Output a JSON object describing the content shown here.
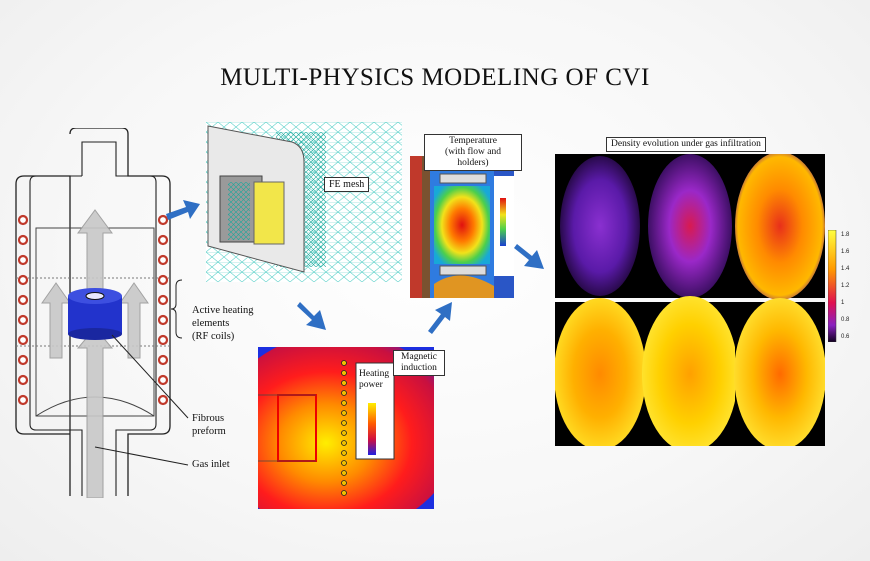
{
  "title": "MULTI-PHYSICS MODELING OF CVI",
  "labels": {
    "fe_mesh": "FE mesh",
    "temperature_line1": "Temperature",
    "temperature_line2": "(with flow and holders)",
    "density": "Density evolution under gas infiltration",
    "magnetic_line1": "Magnetic",
    "magnetic_line2": "induction",
    "heating_line1": "Heating",
    "heating_line2": "power",
    "active_line1": "Active heating",
    "active_line2": "elements",
    "active_line3": "(RF coils)",
    "fibrous_line1": "Fibrous",
    "fibrous_line2": "preform",
    "gas_inlet": "Gas inlet"
  },
  "colorbar_ticks": [
    "1.8",
    "1.6",
    "1.4",
    "1.2",
    "1",
    "0.8",
    "0.6"
  ],
  "colors": {
    "arrow": "#2f6fc4",
    "coil": "#c0392b",
    "preform": "#2233cc"
  }
}
